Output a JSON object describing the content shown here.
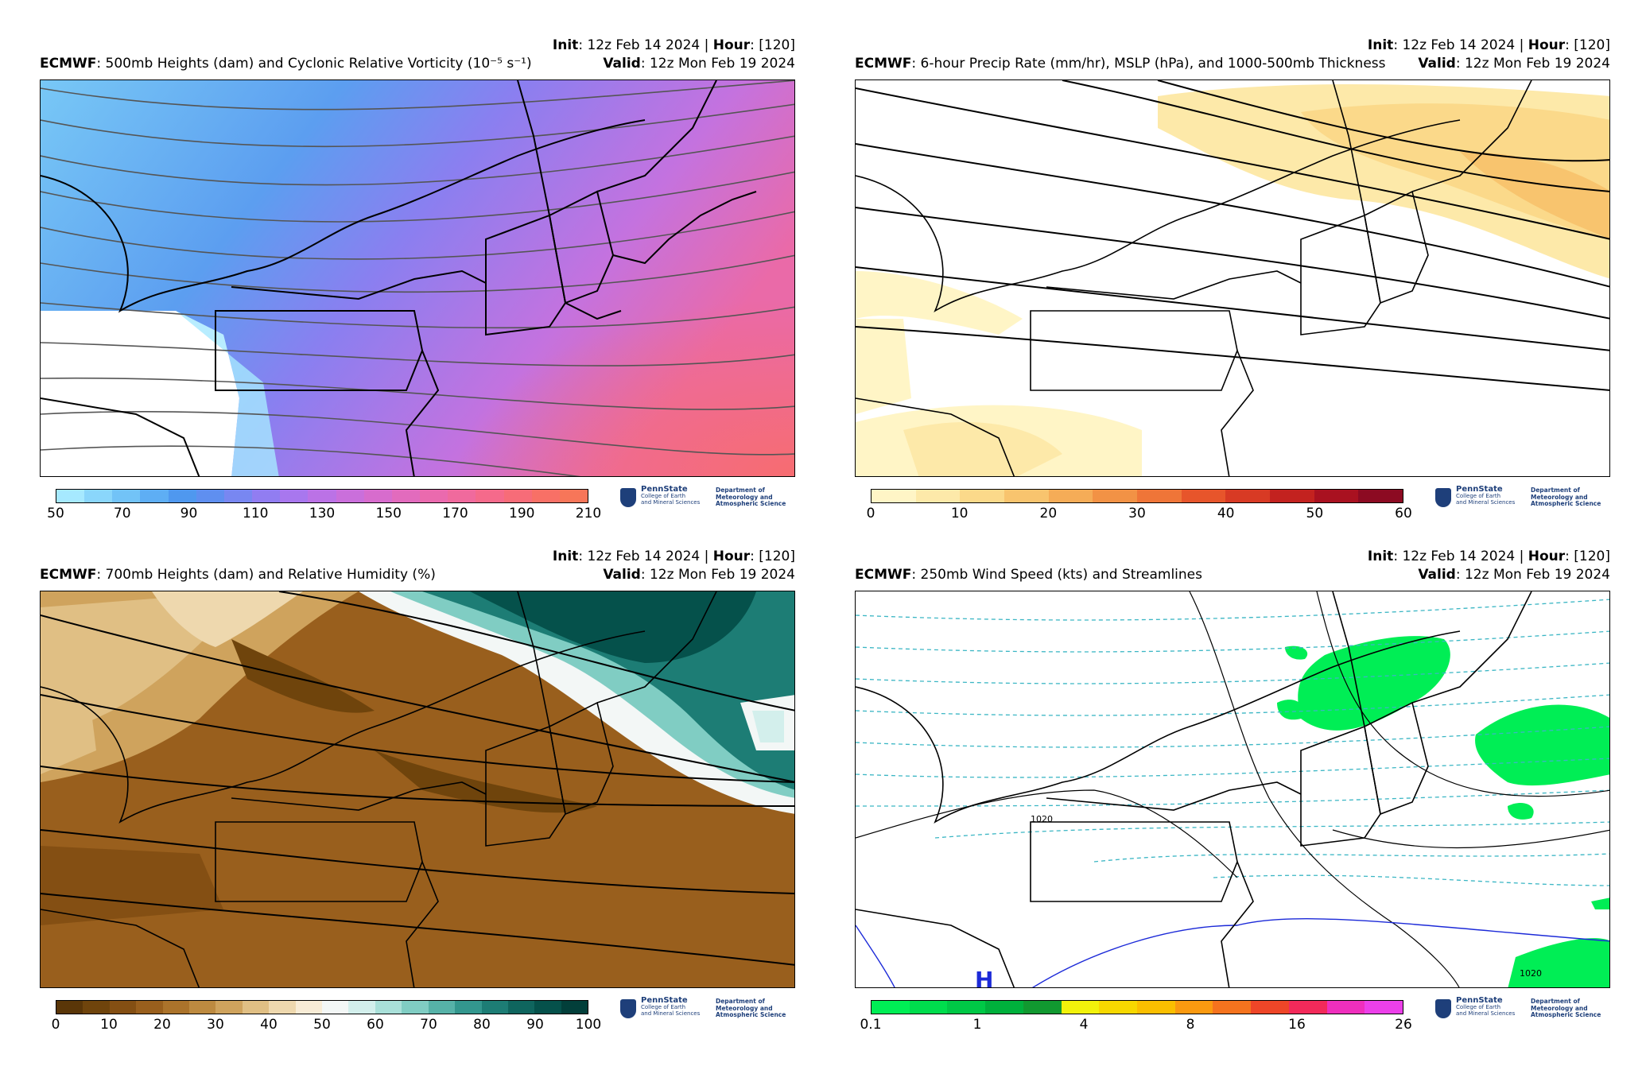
{
  "common": {
    "init_label": "Init",
    "init_value": ": 12z Feb 14 2024 | ",
    "hour_label": "Hour",
    "hour_value": ": [120]",
    "valid_label": "Valid",
    "valid_value": ": 12z Mon Feb 19 2024",
    "model": "ECMWF",
    "logo_name": "PennState",
    "logo_sub1": "College of Earth",
    "logo_sub2": "and Mineral Sciences",
    "dept1": "Department of",
    "dept2": "Meteorology and",
    "dept3": "Atmospheric Science"
  },
  "panels": [
    {
      "title": ": 500mb Heights (dam) and Cyclonic Relative Vorticity (10⁻⁵ s⁻¹)",
      "ticks": [
        "50",
        "70",
        "90",
        "110",
        "130",
        "150",
        "170",
        "190",
        "210"
      ],
      "colors": [
        "#a6e9ff",
        "#8ad6fb",
        "#72c3f7",
        "#5eaef4",
        "#4f98ef",
        "#5f8ff0",
        "#7887f1",
        "#917df1",
        "#a877ee",
        "#bb72e6",
        "#ca6fdb",
        "#d76ccd",
        "#e26bbd",
        "#ea6aae",
        "#f06a9d",
        "#f56a8b",
        "#f76c78",
        "#f87066",
        "#f77659"
      ]
    },
    {
      "title": ": 6-hour Precip Rate (mm/hr), MSLP (hPa), and 1000-500mb Thickness",
      "ticks": [
        "0",
        "10",
        "20",
        "30",
        "40",
        "50",
        "60"
      ],
      "colors": [
        "#fff5c6",
        "#fde9a9",
        "#fbd98a",
        "#f8c46e",
        "#f5ac57",
        "#f29245",
        "#ef7538",
        "#e7552b",
        "#d83a24",
        "#c3221f",
        "#a91120",
        "#8c0a22"
      ]
    },
    {
      "title": ": 700mb Heights (dam) and Relative Humidity (%)",
      "ticks": [
        "0",
        "10",
        "20",
        "30",
        "40",
        "50",
        "60",
        "70",
        "80",
        "90",
        "100"
      ],
      "colors": [
        "#5a3608",
        "#6f440c",
        "#844f13",
        "#995f1d",
        "#ab732b",
        "#bd8a40",
        "#cfa35d",
        "#e0bf84",
        "#eed8ae",
        "#f8ecd6",
        "#f3f7f6",
        "#d3efec",
        "#a9e0d9",
        "#80cdc3",
        "#56b2a8",
        "#33978e",
        "#1d7d75",
        "#0f655e",
        "#05514b",
        "#023f3a"
      ]
    },
    {
      "title": ": 250mb Wind Speed (kts) and Streamlines",
      "ticks": [
        "0.1",
        "1",
        "4",
        "8",
        "16",
        "26"
      ],
      "tick_pos": [
        0,
        0.2,
        0.4,
        0.6,
        0.8,
        1.0
      ],
      "colors": [
        "#00ee55",
        "#00dd4d",
        "#00c846",
        "#00b03c",
        "#119930",
        "#f2f20b",
        "#f7d800",
        "#fbbf00",
        "#fb9a10",
        "#f5731e",
        "#ee4628",
        "#f22a5a",
        "#ef2fbd",
        "#ec40e9"
      ],
      "contour_label": "1020",
      "high_label": "H"
    }
  ]
}
